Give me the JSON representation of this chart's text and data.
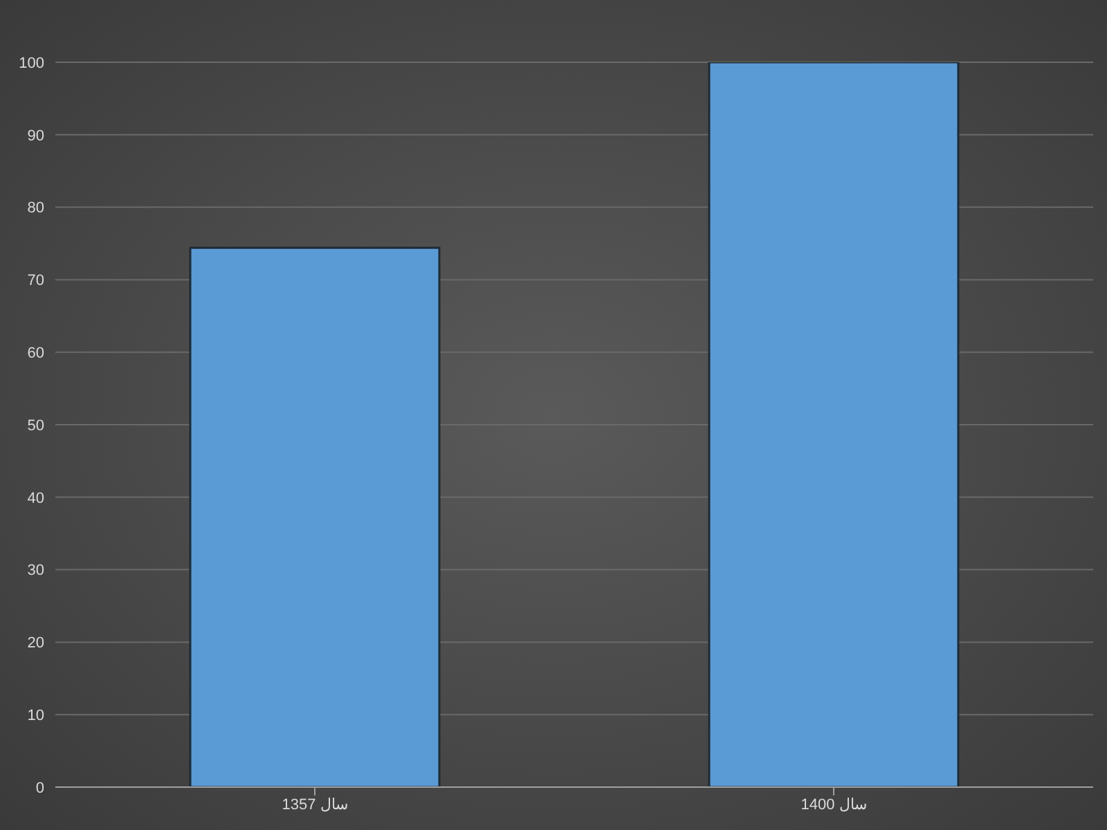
{
  "chart_data": {
    "type": "bar",
    "categories": [
      "سال 1357",
      "سال 1400"
    ],
    "values": [
      74.4,
      100
    ],
    "color": "#5b9bd5",
    "ylim": [
      0,
      100
    ],
    "yticks": [
      0,
      10,
      20,
      30,
      40,
      50,
      60,
      70,
      80,
      90,
      100
    ],
    "grid": "y"
  }
}
